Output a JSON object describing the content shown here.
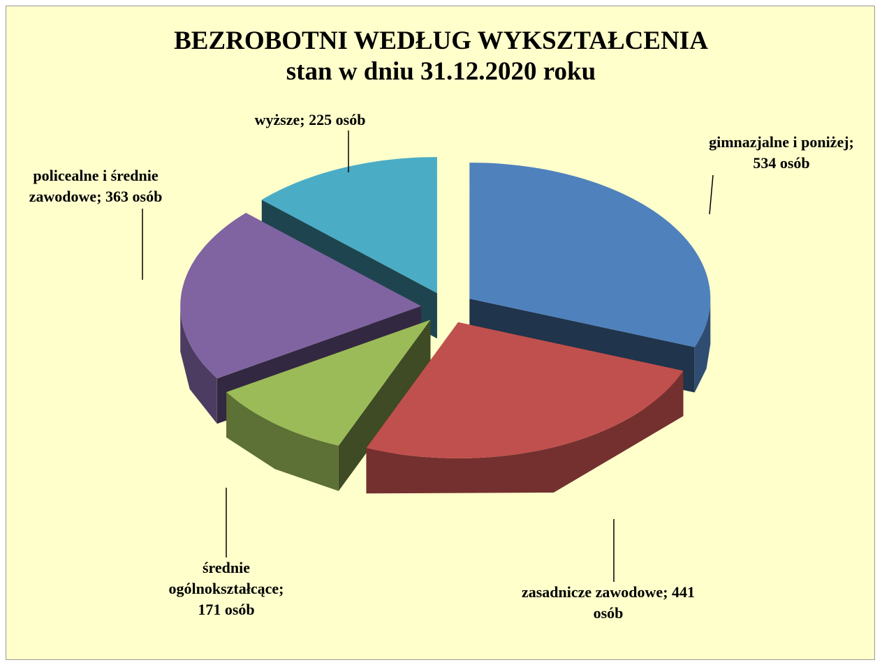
{
  "chart_data": {
    "type": "pie",
    "title": "BEZROBOTNI WEDŁUG WYKSZTAŁCENIA",
    "subtitle": "stan w dniu 31.12.2020 roku",
    "categories": [
      "gimnazjalne i poniżej; 534 osób",
      "zasadnicze zawodowe; 441 osób",
      "średnie ogólnokształcące; 171 osób",
      "policealne i średnie zawodowe; 363 osób",
      "wyższe; 225 osób"
    ],
    "values": [
      534,
      441,
      171,
      363,
      225
    ],
    "colors": [
      "#4f81bd",
      "#c0504d",
      "#9bbb59",
      "#8064a2",
      "#4bacc6"
    ]
  }
}
